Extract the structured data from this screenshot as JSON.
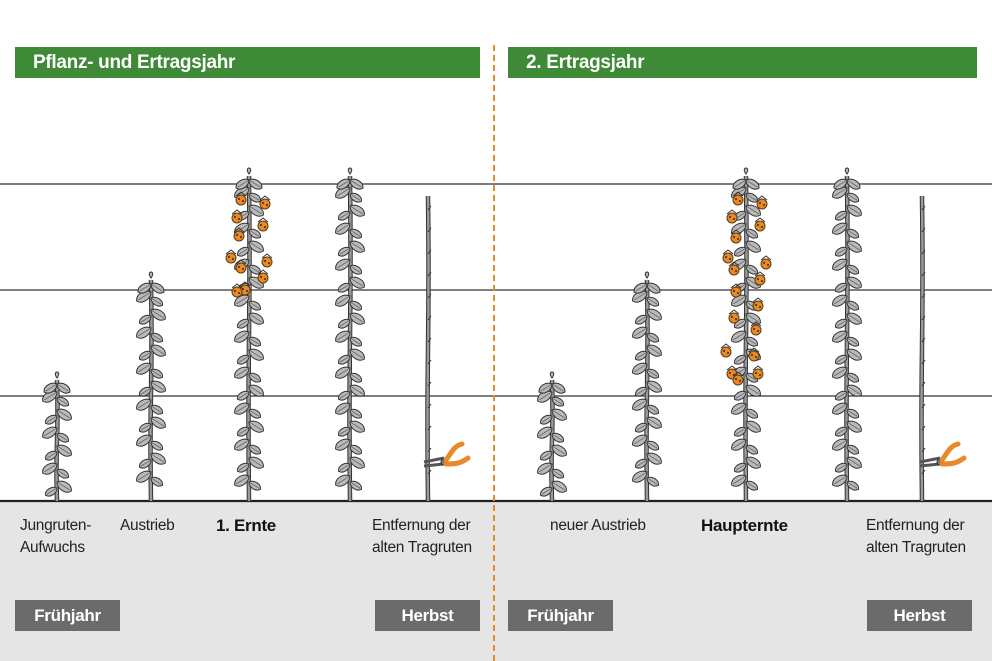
{
  "sections": [
    {
      "title": "Pflanz- und Ertragsjahr"
    },
    {
      "title": "2. Ertragsjahr"
    }
  ],
  "stages_left": [
    {
      "label": "Jungruten-\nAufwuchs",
      "bold": false
    },
    {
      "label": "Austrieb",
      "bold": false
    },
    {
      "label": "1. Ernte",
      "bold": true
    },
    {
      "label": "Entfernung der\nalten Tragruten",
      "bold": false
    }
  ],
  "stages_right": [
    {
      "label": "neuer Austrieb",
      "bold": false
    },
    {
      "label": "Haupternte",
      "bold": true
    },
    {
      "label": "Entfernung der\nalten Tragruten",
      "bold": false
    }
  ],
  "seasons": {
    "left_start": "Frühjahr",
    "left_end": "Herbst",
    "right_start": "Frühjahr",
    "right_end": "Herbst"
  },
  "colors": {
    "banner": "#3e8a36",
    "season_box": "#6b6b6b",
    "divider": "#e8892a",
    "berry": "#e8892a",
    "ground": "#e5e5e5"
  },
  "icons": [
    "raspberry-cane-icon",
    "berry-cluster-icon",
    "pruning-shears-icon"
  ]
}
